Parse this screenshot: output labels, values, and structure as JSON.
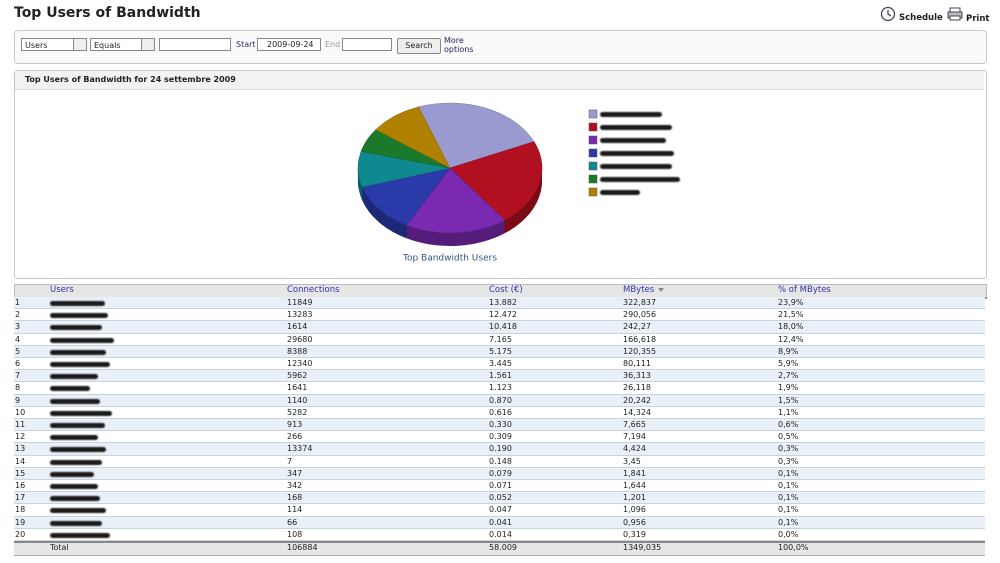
{
  "header": {
    "title": "Top Users of Bandwidth",
    "actions": [
      "Schedule",
      "Print"
    ]
  },
  "filters": {
    "field": "Users",
    "operator": "Equals",
    "start_label": "Start",
    "start_date": "2009-09-24",
    "end_label": "End",
    "search": "Search",
    "more": "More options"
  },
  "panel": {
    "title": "Top Users of Bandwidth for 24 settembre 2009"
  },
  "chart_data": {
    "type": "pie",
    "title": "Top Bandwidth Users",
    "values": [
      23.9,
      21.5,
      18.0,
      12.4,
      8.9,
      5.9,
      9.4
    ],
    "colors": [
      "#9a9ad0",
      "#b01020",
      "#7a2ab0",
      "#2a3aa8",
      "#10888f",
      "#1a7a2a",
      "#b08000"
    ]
  },
  "table": {
    "columns": [
      "Users",
      "Connections",
      "Cost (€)",
      "MBytes",
      "% of MBytes"
    ],
    "rows": [
      [
        "1",
        "11849",
        "13.882",
        "322,837",
        "23,9%"
      ],
      [
        "2",
        "13283",
        "12.472",
        "290,056",
        "21,5%"
      ],
      [
        "3",
        "1614",
        "10.418",
        "242,27",
        "18,0%"
      ],
      [
        "4",
        "29680",
        "7.165",
        "166,618",
        "12,4%"
      ],
      [
        "5",
        "8388",
        "5.175",
        "120,355",
        "8,9%"
      ],
      [
        "6",
        "12340",
        "3.445",
        "80,111",
        "5,9%"
      ],
      [
        "7",
        "5962",
        "1.561",
        "36,313",
        "2,7%"
      ],
      [
        "8",
        "1641",
        "1.123",
        "26,118",
        "1,9%"
      ],
      [
        "9",
        "1140",
        "0.870",
        "20,242",
        "1,5%"
      ],
      [
        "10",
        "5282",
        "0.616",
        "14,324",
        "1,1%"
      ],
      [
        "11",
        "913",
        "0.330",
        "7,665",
        "0,6%"
      ],
      [
        "12",
        "266",
        "0.309",
        "7,194",
        "0,5%"
      ],
      [
        "13",
        "13374",
        "0.190",
        "4,424",
        "0,3%"
      ],
      [
        "14",
        "7",
        "0.148",
        "3,45",
        "0,3%"
      ],
      [
        "15",
        "347",
        "0.079",
        "1,841",
        "0,1%"
      ],
      [
        "16",
        "342",
        "0.071",
        "1,644",
        "0,1%"
      ],
      [
        "17",
        "168",
        "0.052",
        "1,201",
        "0,1%"
      ],
      [
        "18",
        "114",
        "0.047",
        "1,096",
        "0,1%"
      ],
      [
        "19",
        "66",
        "0.041",
        "0,956",
        "0,1%"
      ],
      [
        "20",
        "108",
        "0.014",
        "0,319",
        "0,0%"
      ]
    ],
    "total": [
      "Total",
      "106884",
      "58.009",
      "1349,035",
      "100,0%"
    ]
  }
}
